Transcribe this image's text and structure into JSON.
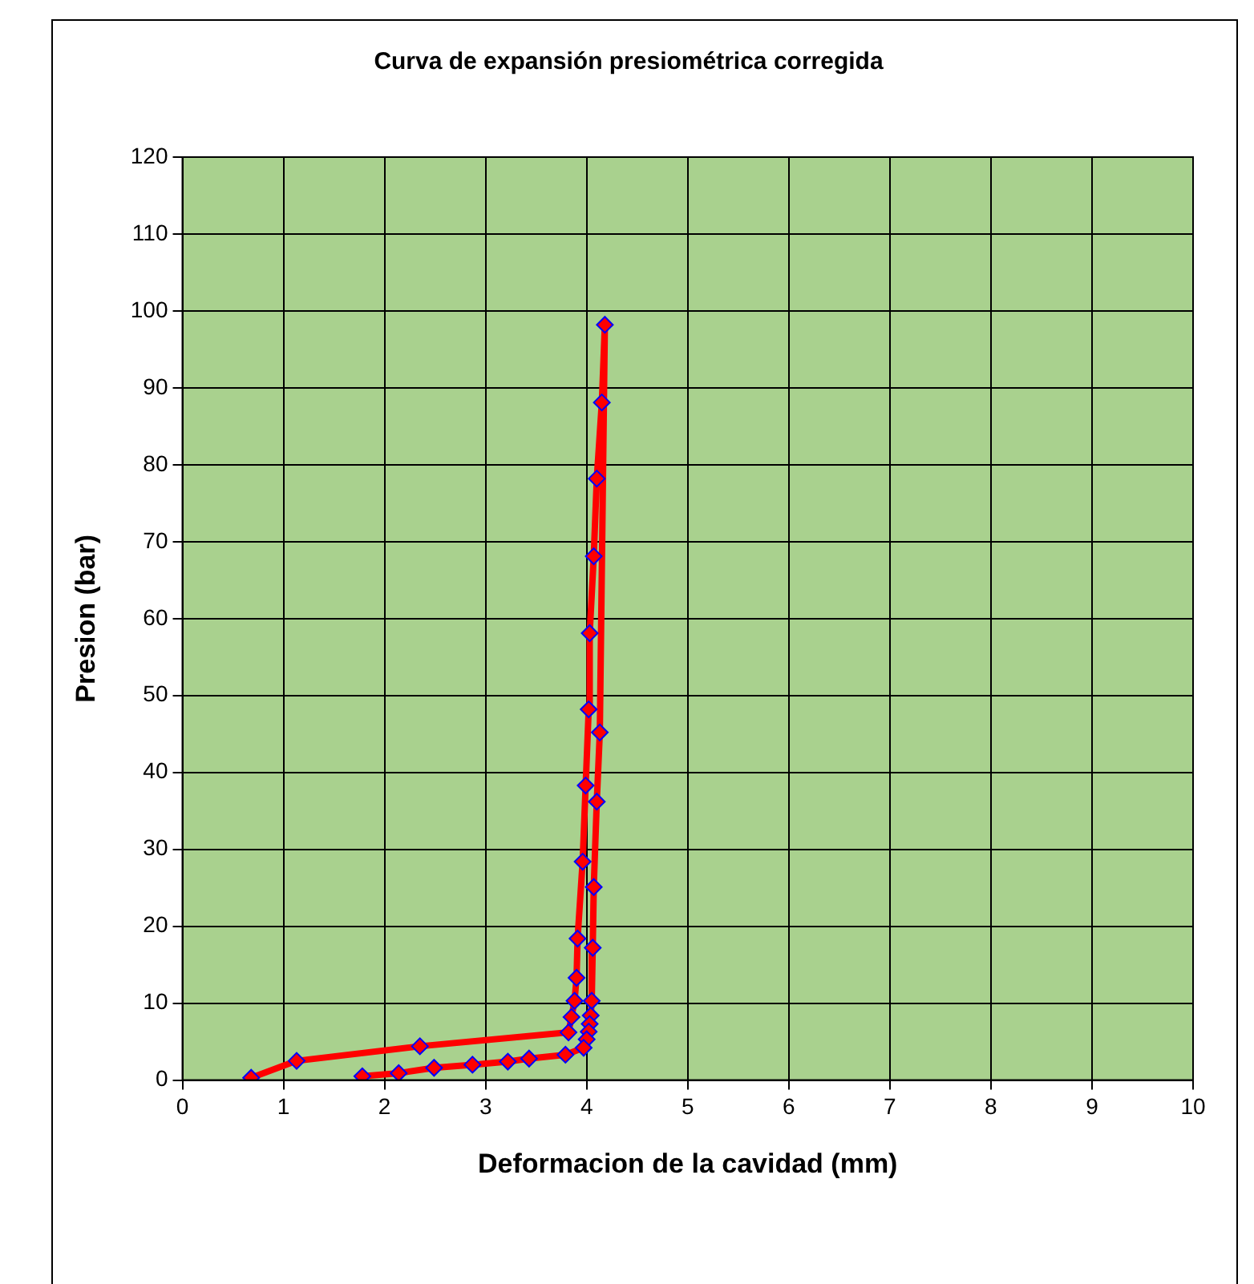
{
  "chart_data": {
    "type": "line",
    "title": "Curva de expansión presiométrica corregida",
    "xlabel": "Deformacion de la cavidad (mm)",
    "ylabel": "Presion (bar)",
    "x": [
      0.68,
      1.13,
      2.35,
      3.82,
      3.85,
      3.88,
      3.9,
      3.91,
      3.96,
      3.99,
      4.02,
      4.03,
      4.07,
      4.1,
      4.15,
      4.18,
      4.13,
      4.1,
      4.07,
      4.06,
      4.05,
      4.04,
      4.03,
      4.02,
      4.0,
      3.97,
      3.79,
      3.43,
      3.22,
      2.87,
      2.49,
      2.14,
      1.78
    ],
    "series": [
      {
        "color": "#ff0000",
        "values": [
          0.3,
          2.5,
          4.4,
          6.2,
          8.2,
          10.3,
          13.3,
          18.4,
          28.4,
          38.3,
          48.2,
          58.1,
          68.1,
          78.2,
          88.1,
          98.2,
          45.2,
          36.2,
          25.1,
          17.2,
          10.3,
          8.4,
          7.3,
          6.3,
          5.3,
          4.2,
          3.3,
          2.8,
          2.4,
          2.0,
          1.6,
          0.9,
          0.5
        ]
      }
    ],
    "xlim": [
      0,
      10
    ],
    "xticks": [
      0,
      1,
      2,
      3,
      4,
      5,
      6,
      7,
      8,
      9,
      10
    ],
    "ylim": [
      0,
      120
    ],
    "yticks": [
      0,
      10,
      20,
      30,
      40,
      50,
      60,
      70,
      80,
      90,
      100,
      110,
      120
    ],
    "grid": true,
    "legend": false,
    "marker": "diamond",
    "line_style": "solid"
  }
}
